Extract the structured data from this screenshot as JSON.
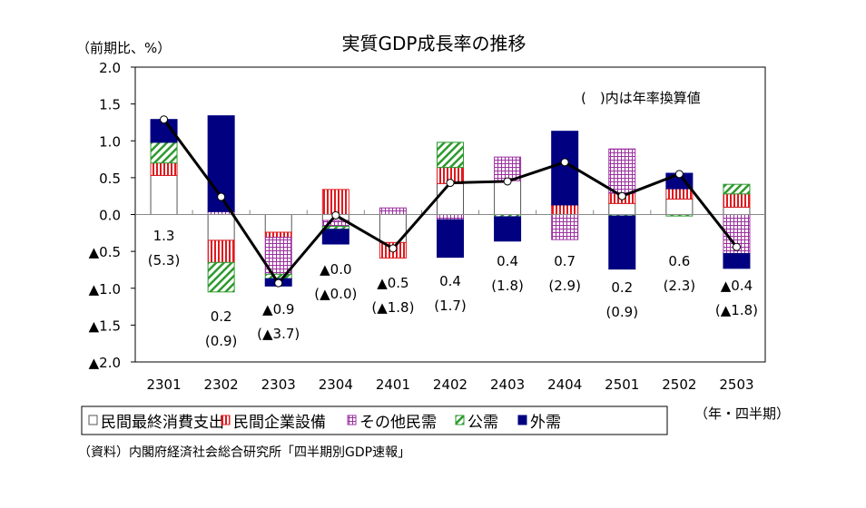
{
  "chart_data": {
    "type": "bar",
    "subtype": "stacked bar with line",
    "title": "実質GDP成長率の推移",
    "ylabel": "（前期比、%）",
    "xlabel": "（年・四半期）",
    "note": "(　)内は年率換算値",
    "source": "（資料）内閣府経済社会総合研究所「四半期別GDP速報」",
    "ylim": [
      -2.0,
      2.0
    ],
    "yticks": [
      "2.0",
      "1.5",
      "1.0",
      "0.5",
      "0.0",
      "▲0.5",
      "▲1.0",
      "▲1.5",
      "▲2.0"
    ],
    "categories": [
      "2301",
      "2302",
      "2303",
      "2304",
      "2401",
      "2402",
      "2403",
      "2404",
      "2501",
      "2502",
      "2503"
    ],
    "series": [
      {
        "name": "民間最終消費支出",
        "color": "#ffffff",
        "pattern": "none",
        "values": [
          0.53,
          -0.35,
          -0.24,
          -0.08,
          -0.38,
          0.42,
          0.46,
          0,
          0.15,
          0.21,
          0.1
        ]
      },
      {
        "name": "民間企業設備",
        "color": "#e0191e",
        "pattern": "vertical-stripes",
        "values": [
          0.17,
          -0.3,
          -0.07,
          0.34,
          -0.21,
          0.22,
          0,
          0.13,
          0.14,
          0.14,
          0.18
        ]
      },
      {
        "name": "その他民需",
        "color": "#9b30a0",
        "pattern": "grid",
        "values": [
          0,
          0.04,
          -0.5,
          -0.08,
          0.09,
          -0.07,
          0.32,
          -0.34,
          0.6,
          0,
          -0.53
        ]
      },
      {
        "name": "公需",
        "color": "#2e9a2e",
        "pattern": "diagonal",
        "values": [
          0.28,
          -0.4,
          -0.06,
          -0.04,
          0,
          0.34,
          -0.03,
          0,
          -0.02,
          -0.02,
          0.13
        ]
      },
      {
        "name": "外需",
        "color": "#000080",
        "pattern": "solid",
        "values": [
          0.31,
          1.3,
          -0.1,
          -0.2,
          0,
          -0.51,
          -0.33,
          1.0,
          -0.72,
          0.21,
          -0.2
        ]
      }
    ],
    "line": {
      "name": "実質GDP成長率",
      "color": "#000000",
      "values": [
        1.29,
        0.24,
        -0.93,
        -0.01,
        -0.46,
        0.43,
        0.45,
        0.71,
        0.25,
        0.55,
        -0.44
      ]
    },
    "data_labels": [
      {
        "q": "1.3",
        "a": "(5.3)"
      },
      {
        "q": "0.2",
        "a": "(0.9)"
      },
      {
        "q": "▲0.9",
        "a": "(▲3.7)"
      },
      {
        "q": "▲0.0",
        "a": "(▲0.0)"
      },
      {
        "q": "▲0.5",
        "a": "(▲1.8)"
      },
      {
        "q": "0.4",
        "a": "(1.7)"
      },
      {
        "q": "0.4",
        "a": "(1.8)"
      },
      {
        "q": "0.7",
        "a": "(2.9)"
      },
      {
        "q": "0.2",
        "a": "(0.9)"
      },
      {
        "q": "0.6",
        "a": "(2.3)"
      },
      {
        "q": "▲0.4",
        "a": "(▲1.8)"
      }
    ],
    "legend": {
      "placement": "bottom"
    },
    "grid": false
  }
}
